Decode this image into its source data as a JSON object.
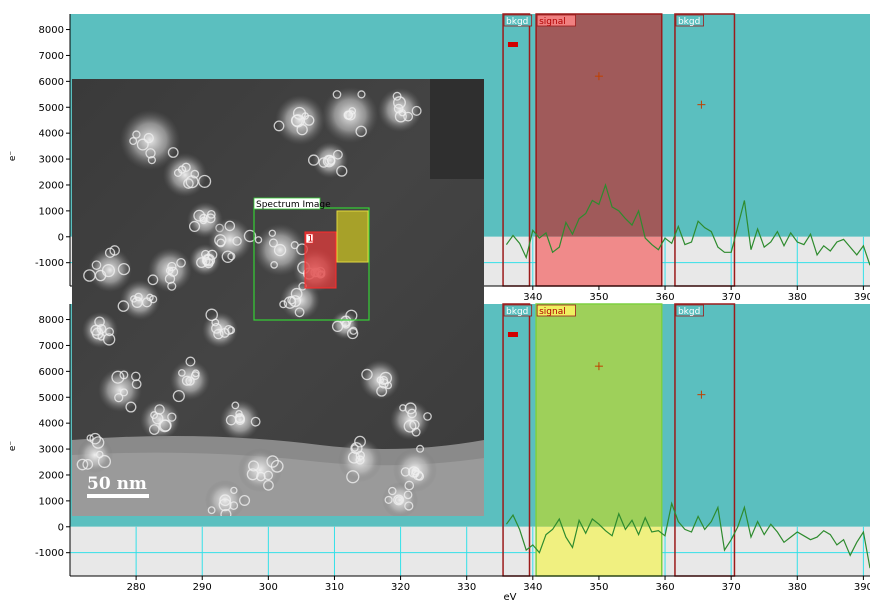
{
  "chart_data": [
    {
      "type": "line",
      "name_hint": "top spectrum",
      "ylabel": "e⁻",
      "xlabel": "",
      "xlim": [
        270,
        391
      ],
      "ylim": [
        -1900,
        8600
      ],
      "x_ticks": [
        280,
        290,
        300,
        310,
        320,
        330,
        340,
        350,
        360,
        370,
        380,
        390
      ],
      "y_ticks": [
        -1000,
        0,
        1000,
        2000,
        3000,
        4000,
        5000,
        6000,
        7000,
        8000
      ],
      "regions": [
        {
          "label": "bkgd",
          "x0": 335.5,
          "x1": 339.5
        },
        {
          "label": "signal",
          "x0": 340.5,
          "x1": 359.5
        },
        {
          "label": "bkgd",
          "x0": 361.5,
          "x1": 370.5
        }
      ],
      "markers": [
        {
          "x": 350,
          "y": 6200
        },
        {
          "x": 365.5,
          "y": 5100
        }
      ],
      "series": [
        {
          "color": "#2e8b2e",
          "x": [
            336,
            337,
            338,
            339,
            340,
            341,
            342,
            343,
            344,
            345,
            346,
            347,
            348,
            349,
            350,
            351,
            352,
            353,
            354,
            355,
            356,
            357,
            358,
            359,
            360,
            361,
            362,
            363,
            364,
            365,
            366,
            367,
            368,
            369,
            370,
            371,
            372,
            373,
            374,
            375,
            376,
            377,
            378,
            379,
            380,
            381,
            382,
            383,
            384,
            385,
            386,
            387,
            388,
            389,
            390,
            391
          ],
          "y": [
            -300,
            50,
            -250,
            -800,
            250,
            -50,
            150,
            -600,
            -400,
            550,
            100,
            700,
            900,
            1400,
            1250,
            2000,
            1150,
            1000,
            700,
            450,
            1000,
            -50,
            -300,
            -500,
            -50,
            -250,
            400,
            -300,
            -200,
            600,
            350,
            200,
            -400,
            -600,
            -600,
            400,
            1400,
            -500,
            300,
            -400,
            -200,
            200,
            -350,
            150,
            -200,
            -300,
            100,
            -700,
            -350,
            -550,
            -200,
            -100,
            -400,
            -700,
            -350,
            -1100
          ]
        }
      ]
    },
    {
      "type": "line",
      "name_hint": "bottom spectrum",
      "ylabel": "e⁻",
      "xlabel": "eV",
      "xlim": [
        270,
        391
      ],
      "ylim": [
        -1900,
        8600
      ],
      "x_ticks": [
        280,
        290,
        300,
        310,
        320,
        330,
        340,
        350,
        360,
        370,
        380,
        390
      ],
      "y_ticks": [
        -1000,
        0,
        1000,
        2000,
        3000,
        4000,
        5000,
        6000,
        7000,
        8000
      ],
      "regions": [
        {
          "label": "bkgd",
          "x0": 335.5,
          "x1": 339.5
        },
        {
          "label": "signal",
          "x0": 340.5,
          "x1": 359.5
        },
        {
          "label": "bkgd",
          "x0": 361.5,
          "x1": 370.5
        }
      ],
      "markers": [
        {
          "x": 350,
          "y": 6200
        },
        {
          "x": 365.5,
          "y": 5100
        }
      ],
      "series": [
        {
          "color": "#2e8b2e",
          "x": [
            336,
            337,
            338,
            339,
            340,
            341,
            342,
            343,
            344,
            345,
            346,
            347,
            348,
            349,
            350,
            351,
            352,
            353,
            354,
            355,
            356,
            357,
            358,
            359,
            360,
            361,
            362,
            363,
            364,
            365,
            366,
            367,
            368,
            369,
            370,
            371,
            372,
            373,
            374,
            375,
            376,
            377,
            378,
            379,
            380,
            381,
            382,
            383,
            384,
            385,
            386,
            387,
            388,
            389,
            390,
            391
          ],
          "y": [
            100,
            450,
            -100,
            -900,
            -700,
            -1000,
            -300,
            -100,
            300,
            -400,
            -800,
            250,
            -250,
            300,
            100,
            -150,
            -350,
            500,
            -100,
            250,
            -300,
            350,
            -200,
            -150,
            -350,
            900,
            200,
            -100,
            -200,
            400,
            -100,
            200,
            750,
            -900,
            -500,
            0,
            750,
            -400,
            200,
            -300,
            100,
            -200,
            -600,
            -400,
            -200,
            -350,
            -500,
            -400,
            -150,
            -300,
            -700,
            -500,
            -1100,
            -600,
            -200,
            -1600
          ]
        }
      ]
    }
  ],
  "overlay": {
    "roi_label": "Spectrum Image",
    "roi_small_label": "1",
    "scalebar_label": "50 nm"
  },
  "colors": {
    "teal": "#5bbfbf",
    "plot_light": "#e8e8e8",
    "grid": "#33e0e8",
    "line": "#2e8b2e",
    "region_border": "#9b1b1b",
    "signal_top": "#a05a5a",
    "signal_top_lower": "#f08a8a",
    "signal_bottom": "#9ed05a",
    "signal_bottom_lower": "#f0f080"
  }
}
